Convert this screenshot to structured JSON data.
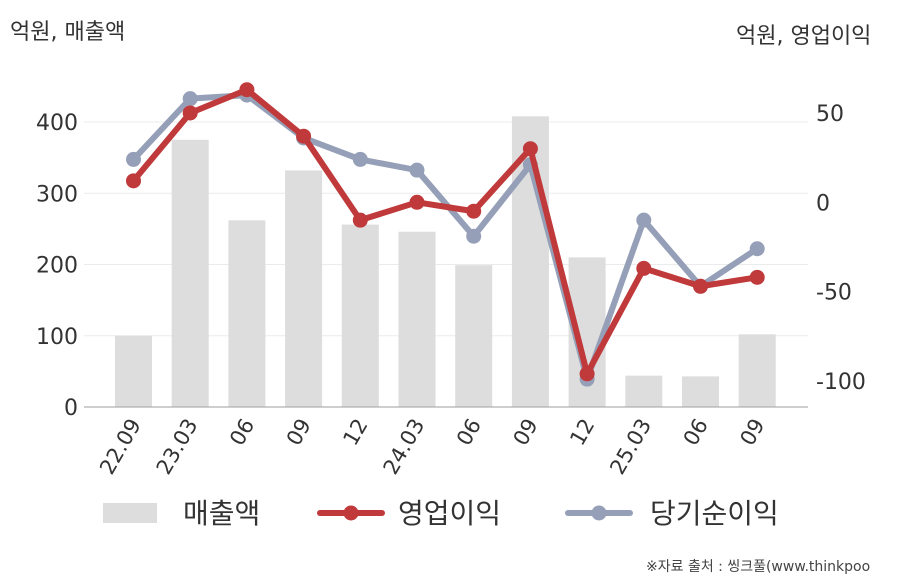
{
  "header": {
    "left_unit": "억원, 매출액",
    "right_unit": "억원, 영업이익"
  },
  "source_note": "※자료 출처 : 씽크풀(www.thinkpoo",
  "chart_data": {
    "type": "bar+line",
    "categories": [
      "22.09",
      "23.03",
      "06",
      "09",
      "12",
      "24.03",
      "06",
      "09",
      "12",
      "25.03",
      "06",
      "09"
    ],
    "y_left": {
      "ticks": [
        0,
        100,
        200,
        300,
        400
      ],
      "lim": [
        0,
        450
      ]
    },
    "y_right": {
      "ticks": [
        50,
        0,
        -50,
        -100
      ],
      "lim": [
        -115,
        70
      ]
    },
    "grid": true,
    "legend_position": "bottom",
    "series": [
      {
        "name": "매출액",
        "type": "bar",
        "axis": "left",
        "color": "#dddddd",
        "values": [
          100,
          375,
          262,
          332,
          256,
          246,
          199,
          408,
          210,
          44,
          43,
          102
        ]
      },
      {
        "name": "영업이익",
        "type": "line",
        "axis": "right",
        "color": "#c0393b",
        "values": [
          12,
          50,
          63,
          37,
          -10,
          0,
          -5,
          30,
          -96,
          -37,
          -47,
          -42
        ]
      },
      {
        "name": "당기순이익",
        "type": "line",
        "axis": "right",
        "color": "#95a0b8",
        "values": [
          24,
          58,
          60,
          36,
          24,
          18,
          -19,
          21,
          -99,
          -10,
          -47,
          -26
        ]
      }
    ]
  }
}
